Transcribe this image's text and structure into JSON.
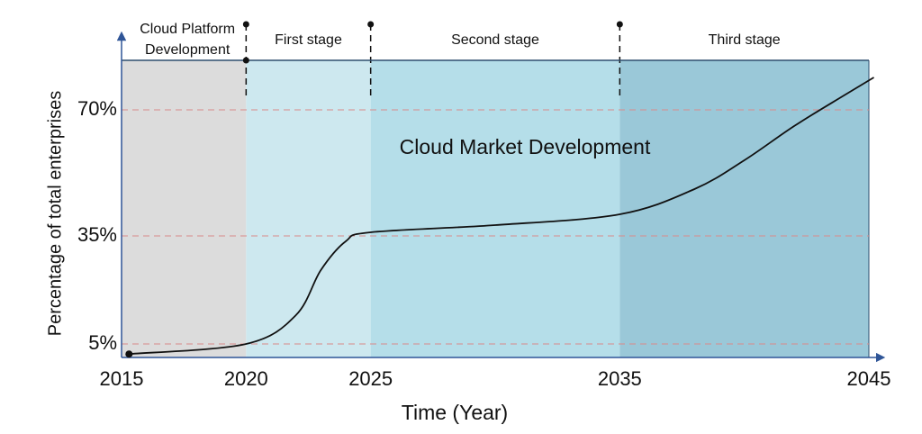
{
  "chart_data": {
    "type": "line",
    "annotation": "Cloud Market Development",
    "xlabel": "Time (Year)",
    "ylabel": "Percentage of total enterprises",
    "x": [
      2015.3,
      2020,
      2022,
      2023,
      2024,
      2025,
      2030,
      2035,
      2038,
      2040,
      2042,
      2044,
      2045.2
    ],
    "series": [
      {
        "color": "#111111",
        "values": [
          2.2,
          5,
          13,
          25.5,
          33.5,
          36,
          38,
          41,
          48,
          56,
          65.5,
          74,
          79
        ]
      }
    ],
    "xlim": [
      2015,
      2045
    ],
    "xticks": [
      2015,
      2020,
      2025,
      2035,
      2045
    ],
    "ylim": [
      1.25,
      83.75
    ],
    "yticks": [
      {
        "value": 5,
        "label": "5%"
      },
      {
        "value": 35,
        "label": "35%"
      },
      {
        "value": 70,
        "label": "70%"
      }
    ],
    "grid": true,
    "stages": [
      {
        "label": "Cloud Platform Development",
        "start": 2015,
        "end": 2020,
        "color": "#dcdcdc"
      },
      {
        "label": "First stage",
        "start": 2020,
        "end": 2025,
        "color": "#cde8ef"
      },
      {
        "label": "Second stage",
        "start": 2025,
        "end": 2035,
        "color": "#b5dee9"
      },
      {
        "label": "Third stage",
        "start": 2035,
        "end": 2045,
        "color": "#9ac8d8"
      }
    ]
  }
}
